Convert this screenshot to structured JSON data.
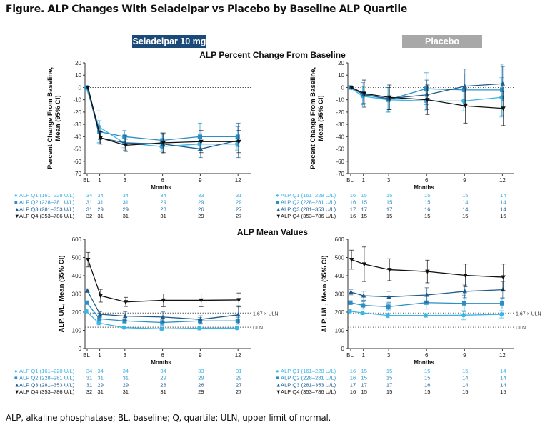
{
  "figure_title": "Figure. ALP Changes With Seladelpar vs Placebo by Baseline ALP Quartile",
  "arm_labels": {
    "seladelpar": "Seladelpar 10 mg",
    "placebo": "Placebo"
  },
  "section_titles": {
    "pct": "ALP Percent Change From Baseline",
    "mean": "ALP Mean Values"
  },
  "footnote": "ALP, alkaline phosphatase; BL, baseline; Q, quartile; ULN, upper limit of normal.",
  "colors": {
    "Q1": "#3cb4e5",
    "Q2": "#2a8fc7",
    "Q3": "#1e5b8c",
    "Q4": "#111111",
    "seladelpar_banner": "#1b4a78",
    "placebo_banner": "#a8a8a8"
  },
  "chart_data": [
    {
      "type": "line",
      "id": "sela-pct",
      "ylabel": [
        "Percent Change From Baseline,",
        "Mean (95% CI)"
      ],
      "xlabel": "Months",
      "ylim": [
        -70,
        20
      ],
      "yticks": [
        20,
        10,
        0,
        -10,
        -20,
        -30,
        -40,
        -50,
        -60,
        -70
      ],
      "x": [
        0,
        1,
        3,
        6,
        9,
        12
      ],
      "xtick_labels": [
        "BL",
        "1",
        "3",
        "6",
        "9",
        "12"
      ],
      "reference_lines": [
        {
          "value": 0,
          "label": ""
        }
      ],
      "series": [
        {
          "name": "ALP Q1 (161–228 U/L)",
          "marker": "circle",
          "values": [
            0,
            -32,
            -45,
            -48,
            -46,
            -46
          ],
          "ci_half": [
            0,
            13,
            4,
            4,
            5,
            5
          ],
          "n": [
            "34",
            "34",
            "34",
            "34",
            "33",
            "31"
          ]
        },
        {
          "name": "ALP Q2 (228–281 U/L)",
          "marker": "square",
          "values": [
            0,
            -36,
            -40,
            -43,
            -40,
            -40
          ],
          "ci_half": [
            0,
            9,
            5,
            6,
            11,
            8
          ],
          "n": [
            "31",
            "31",
            "31",
            "29",
            "29",
            "29"
          ]
        },
        {
          "name": "ALP Q3 (281–353 U/L)",
          "marker": "triangle-up",
          "values": [
            0,
            -41,
            -45,
            -46,
            -50,
            -43
          ],
          "ci_half": [
            0,
            5,
            6,
            8,
            7,
            14
          ],
          "n": [
            "31",
            "29",
            "29",
            "28",
            "26",
            "27"
          ]
        },
        {
          "name": "ALP Q4 (353–786 U/L)",
          "marker": "triangle-down",
          "values": [
            0,
            -41,
            -47,
            -45,
            -44,
            -44
          ],
          "ci_half": [
            0,
            5,
            5,
            8,
            9,
            9
          ],
          "n": [
            "32",
            "31",
            "31",
            "31",
            "29",
            "27"
          ]
        }
      ]
    },
    {
      "type": "line",
      "id": "pbo-pct",
      "ylabel": [
        "Percent Change From Baseline,",
        "Mean (95% CI)"
      ],
      "xlabel": "Months",
      "ylim": [
        -70,
        20
      ],
      "yticks": [
        20,
        10,
        0,
        -10,
        -20,
        -30,
        -40,
        -50,
        -60,
        -70
      ],
      "x": [
        0,
        1,
        3,
        6,
        9,
        12
      ],
      "xtick_labels": [
        "BL",
        "1",
        "3",
        "6",
        "9",
        "12"
      ],
      "reference_lines": [
        {
          "value": 0,
          "label": ""
        }
      ],
      "series": [
        {
          "name": "ALP Q1 (161–228 U/L)",
          "marker": "circle",
          "values": [
            0,
            -7,
            -10,
            -11,
            -11,
            -8
          ],
          "ci_half": [
            0,
            8,
            10,
            8,
            8,
            16
          ],
          "n": [
            "16",
            "15",
            "15",
            "15",
            "15",
            "14"
          ]
        },
        {
          "name": "ALP Q2 (228–281 U/L)",
          "marker": "square",
          "values": [
            0,
            -5,
            -10,
            -1,
            -2,
            -2
          ],
          "ci_half": [
            0,
            9,
            10,
            13,
            13,
            21
          ],
          "n": [
            "16",
            "15",
            "15",
            "15",
            "14",
            "14"
          ]
        },
        {
          "name": "ALP Q3 (281–353 U/L)",
          "marker": "triangle-up",
          "values": [
            0,
            -6,
            -9,
            -6,
            1,
            3
          ],
          "ci_half": [
            0,
            7,
            9,
            12,
            14,
            14
          ],
          "n": [
            "17",
            "17",
            "17",
            "16",
            "14",
            "14"
          ]
        },
        {
          "name": "ALP Q4 (353–786 U/L)",
          "marker": "triangle-down",
          "values": [
            0,
            -5,
            -8,
            -10,
            -15,
            -17
          ],
          "ci_half": [
            0,
            11,
            10,
            12,
            14,
            14
          ],
          "n": [
            "16",
            "15",
            "15",
            "15",
            "15",
            "15"
          ]
        }
      ]
    },
    {
      "type": "line",
      "id": "sela-mean",
      "ylabel": [
        "ALP, U/L, Mean (95% CI)"
      ],
      "xlabel": "Months",
      "ylim": [
        0,
        600
      ],
      "yticks": [
        600,
        500,
        400,
        300,
        200,
        100,
        0
      ],
      "x": [
        0,
        1,
        3,
        6,
        9,
        12
      ],
      "xtick_labels": [
        "BL",
        "1",
        "3",
        "6",
        "9",
        "12"
      ],
      "reference_lines": [
        {
          "value": 195,
          "label": "1.67 × ULN"
        },
        {
          "value": 117,
          "label": "ULN"
        }
      ],
      "series": [
        {
          "name": "ALP Q1 (161–228 U/L)",
          "marker": "circle",
          "values": [
            205,
            140,
            115,
            108,
            112,
            112
          ],
          "ci_half": [
            8,
            10,
            6,
            6,
            10,
            8
          ],
          "n": [
            "34",
            "34",
            "34",
            "34",
            "33",
            "31"
          ]
        },
        {
          "name": "ALP Q2 (228–281 U/L)",
          "marker": "square",
          "values": [
            252,
            163,
            152,
            143,
            152,
            152
          ],
          "ci_half": [
            8,
            12,
            12,
            15,
            18,
            18
          ],
          "n": [
            "31",
            "31",
            "31",
            "29",
            "29",
            "29"
          ]
        },
        {
          "name": "ALP Q3 (281–353 U/L)",
          "marker": "triangle-up",
          "values": [
            318,
            188,
            178,
            173,
            160,
            185
          ],
          "ci_half": [
            10,
            15,
            25,
            28,
            20,
            50
          ],
          "n": [
            "31",
            "29",
            "29",
            "28",
            "26",
            "27"
          ]
        },
        {
          "name": "ALP Q4 (353–786 U/L)",
          "marker": "triangle-down",
          "values": [
            488,
            290,
            256,
            265,
            265,
            267
          ],
          "ci_half": [
            40,
            35,
            25,
            35,
            35,
            38
          ],
          "n": [
            "32",
            "31",
            "31",
            "31",
            "29",
            "27"
          ]
        }
      ]
    },
    {
      "type": "line",
      "id": "pbo-mean",
      "ylabel": [
        "ALP, U/L, Mean (95% CI)"
      ],
      "xlabel": "Months",
      "ylim": [
        0,
        600
      ],
      "yticks": [
        600,
        500,
        400,
        300,
        200,
        100,
        0
      ],
      "x": [
        0,
        1,
        3,
        6,
        9,
        12
      ],
      "xtick_labels": [
        "BL",
        "1",
        "3",
        "6",
        "9",
        "12"
      ],
      "reference_lines": [
        {
          "value": 195,
          "label": "1.67 × ULN"
        },
        {
          "value": 117,
          "label": "ULN"
        }
      ],
      "series": [
        {
          "name": "ALP Q1 (161–228 U/L)",
          "marker": "circle",
          "values": [
            205,
            196,
            182,
            182,
            183,
            188
          ],
          "ci_half": [
            8,
            10,
            12,
            10,
            25,
            20
          ],
          "n": [
            "16",
            "15",
            "15",
            "15",
            "15",
            "14"
          ]
        },
        {
          "name": "ALP Q2 (228–281 U/L)",
          "marker": "square",
          "values": [
            252,
            237,
            230,
            252,
            248,
            248
          ],
          "ci_half": [
            10,
            20,
            18,
            35,
            45,
            30
          ],
          "n": [
            "16",
            "15",
            "15",
            "15",
            "14",
            "14"
          ]
        },
        {
          "name": "ALP Q3 (281–353 U/L)",
          "marker": "triangle-up",
          "values": [
            310,
            290,
            284,
            294,
            314,
            323
          ],
          "ci_half": [
            15,
            25,
            30,
            40,
            35,
            45
          ],
          "n": [
            "17",
            "17",
            "17",
            "16",
            "14",
            "14"
          ]
        },
        {
          "name": "ALP Q4 (353–786 U/L)",
          "marker": "triangle-down",
          "values": [
            488,
            463,
            433,
            423,
            402,
            392
          ],
          "ci_half": [
            52,
            95,
            60,
            62,
            62,
            72
          ],
          "n": [
            "16",
            "15",
            "15",
            "15",
            "15",
            "15"
          ]
        }
      ]
    }
  ]
}
